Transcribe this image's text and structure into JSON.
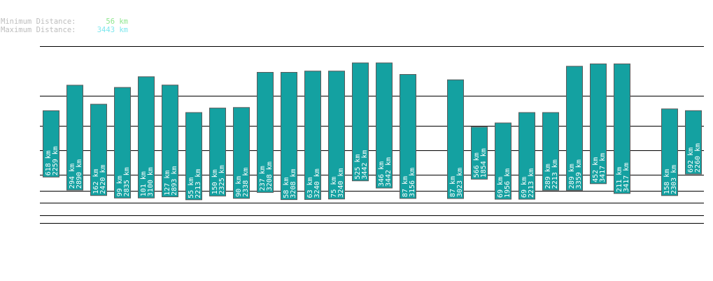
{
  "header": {
    "min_label": "Minimum Distance:",
    "min_value": "56 km",
    "max_label": "Maximum Distance:",
    "max_value": "3443 km"
  },
  "colors": {
    "bar_fill": "#14a1a1",
    "bar_stroke": "#5a5a5a",
    "grid": "#000000",
    "min_text": "#8ee68e",
    "max_text": "#7ee7ee",
    "label_text": "#bdbdbd"
  },
  "chart_data": {
    "type": "bar",
    "subtype": "floating-range",
    "unit": "km",
    "ylim": [
      0,
      3443
    ],
    "grid": true,
    "series": [
      {
        "values": [
          {
            "slot": 0,
            "min": 618,
            "max": 2259
          },
          {
            "slot": 1,
            "min": 294,
            "max": 2890
          },
          {
            "slot": 2,
            "min": 162,
            "max": 2420
          },
          {
            "slot": 3,
            "min": 99,
            "max": 2835
          },
          {
            "slot": 4,
            "min": 101,
            "max": 3100
          },
          {
            "slot": 5,
            "min": 127,
            "max": 2893
          },
          {
            "slot": 6,
            "min": 55,
            "max": 2213
          },
          {
            "slot": 7,
            "min": 150,
            "max": 2325
          },
          {
            "slot": 8,
            "min": 90,
            "max": 2338
          },
          {
            "slot": 9,
            "min": 237,
            "max": 3208
          },
          {
            "slot": 10,
            "min": 58,
            "max": 3208
          },
          {
            "slot": 11,
            "min": 63,
            "max": 3240
          },
          {
            "slot": 12,
            "min": 75,
            "max": 3240
          },
          {
            "slot": 13,
            "min": 525,
            "max": 3442
          },
          {
            "slot": 14,
            "min": 346,
            "max": 3442
          },
          {
            "slot": 15,
            "min": 87,
            "max": 3156
          },
          {
            "slot": 17,
            "min": 87,
            "max": 3023
          },
          {
            "slot": 18,
            "min": 566,
            "max": 1854
          },
          {
            "slot": 19,
            "min": 69,
            "max": 1956
          },
          {
            "slot": 20,
            "min": 69,
            "max": 2213
          },
          {
            "slot": 21,
            "min": 289,
            "max": 2213
          },
          {
            "slot": 22,
            "min": 289,
            "max": 3359
          },
          {
            "slot": 23,
            "min": 452,
            "max": 3417
          },
          {
            "slot": 24,
            "min": 211,
            "max": 3417
          },
          {
            "slot": 26,
            "min": 158,
            "max": 2303
          },
          {
            "slot": 27,
            "min": 692,
            "max": 2260
          }
        ]
      }
    ]
  }
}
